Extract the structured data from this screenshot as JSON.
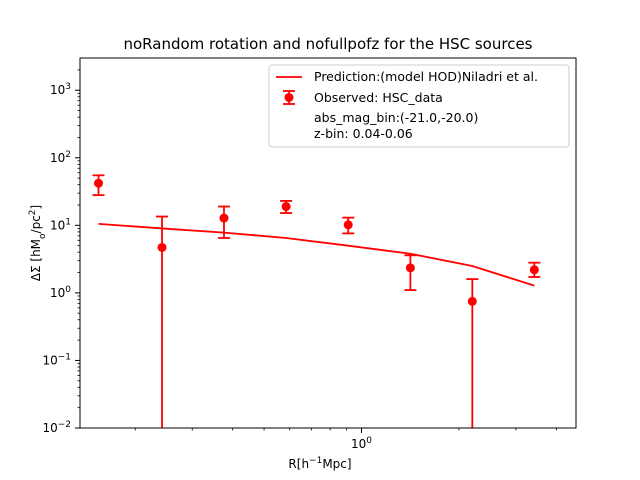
{
  "chart_data": {
    "type": "scatter",
    "title": "noRandom rotation and nofullpofz for the HSC sources",
    "xlabel": "R[h^-1 Mpc]",
    "ylabel": "ΔΣ [hM_o/pc^2]",
    "x_scale": "log",
    "y_scale": "log",
    "xlim": [
      0.135,
      4.6
    ],
    "ylim": [
      0.01,
      3000
    ],
    "x_tick_labels": [
      "10^0"
    ],
    "y_tick_labels": [
      "10^-2",
      "10^-1",
      "10^0",
      "10^1",
      "10^2",
      "10^3"
    ],
    "legend_position": "top-right",
    "color": "#ff0000",
    "series": [
      {
        "name": "Prediction:(model HOD)Niladri et al.",
        "type": "line",
        "x": [
          0.154,
          0.242,
          0.376,
          0.585,
          0.91,
          1.416,
          2.2,
          3.42
        ],
        "y": [
          10.5,
          9.0,
          7.8,
          6.5,
          5.0,
          3.8,
          2.5,
          1.28
        ]
      },
      {
        "name": "Observed: HSC_data",
        "type": "errorbar",
        "x": [
          0.154,
          0.242,
          0.376,
          0.585,
          0.91,
          1.416,
          2.2,
          3.42
        ],
        "y": [
          42,
          4.7,
          12.8,
          19.0,
          10.2,
          2.35,
          0.75,
          2.2
        ],
        "y_lower": [
          28,
          0.001,
          6.5,
          15.2,
          7.6,
          1.1,
          0.001,
          1.72
        ],
        "y_upper": [
          55,
          13.5,
          19.0,
          23.0,
          13.0,
          3.6,
          1.6,
          2.8
        ]
      }
    ],
    "annotations": [
      "abs_mag_bin:(-21.0,-20.0)",
      "z-bin: 0.04-0.06"
    ]
  }
}
